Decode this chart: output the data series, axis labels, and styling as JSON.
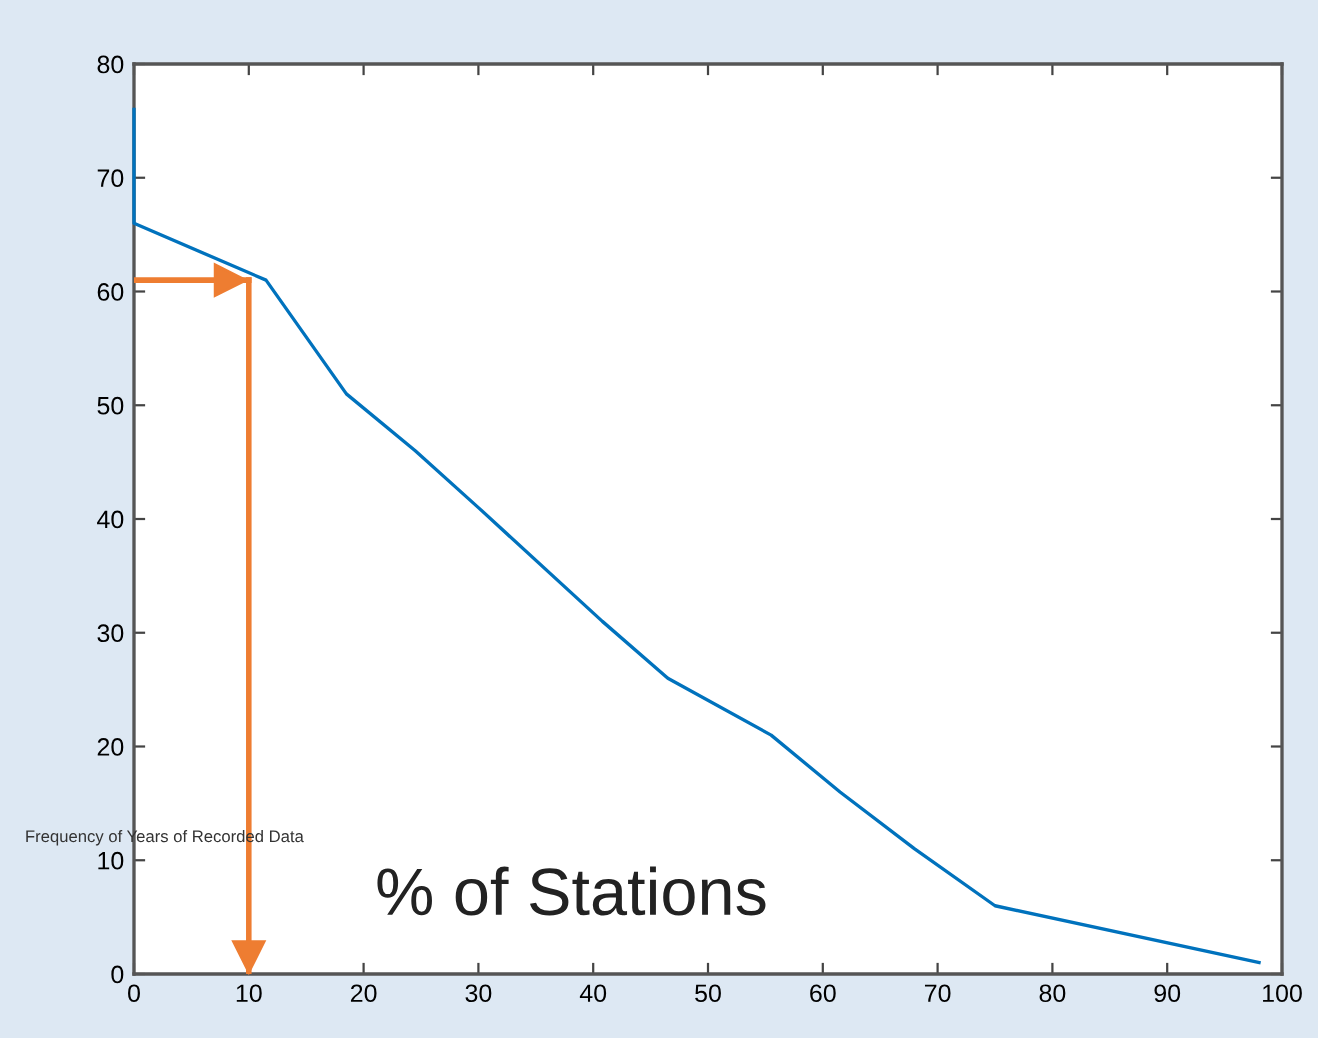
{
  "chart_data": {
    "type": "line",
    "x": [
      0,
      0,
      11.5,
      18.5,
      24.5,
      30,
      40.8,
      46.5,
      55.5,
      61.5,
      68,
      75,
      98
    ],
    "series": [
      {
        "color": "#0072bd",
        "values": [
          76,
          66,
          61,
          51,
          46,
          41,
          31,
          26,
          21,
          16,
          11,
          6,
          1
        ]
      }
    ],
    "xlim": [
      0,
      100
    ],
    "xticks": [
      0,
      10,
      20,
      30,
      40,
      50,
      60,
      70,
      80,
      90,
      100
    ],
    "ylim": [
      0,
      80
    ],
    "yticks": [
      0,
      10,
      20,
      30,
      40,
      50,
      60,
      70,
      80
    ],
    "grid": false,
    "marker": "none",
    "line_style": "solid",
    "ref_lines": [
      {
        "axis": "y",
        "value": 61,
        "color": "#ee7d31"
      },
      {
        "axis": "x",
        "value": 10,
        "color": "#ee7d31"
      }
    ],
    "annotations": [
      "Frequency of Years of Recorded Data",
      "% of Stations"
    ]
  }
}
